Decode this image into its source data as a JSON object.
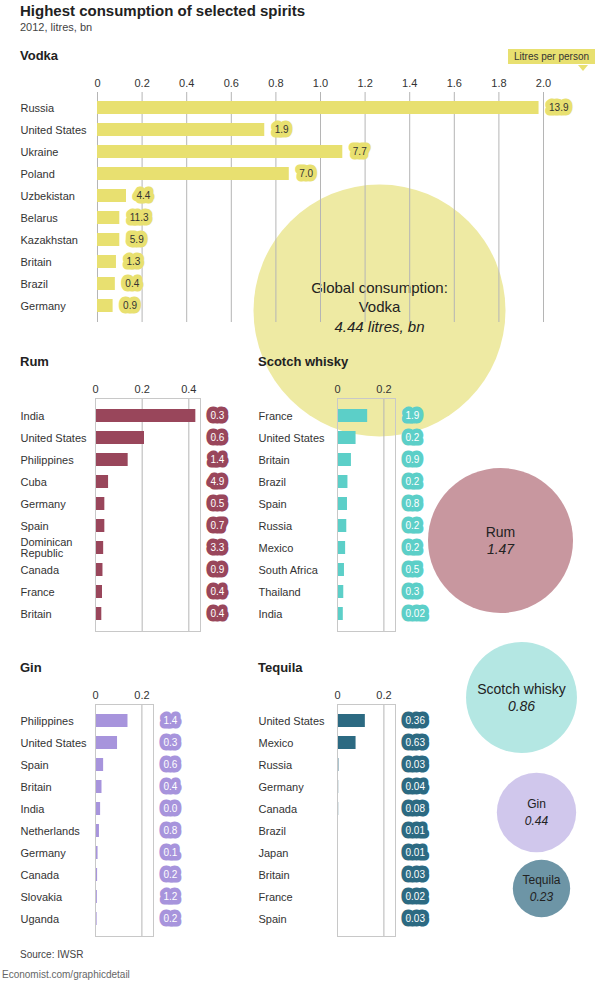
{
  "title": "Highest consumption of selected spirits",
  "subtitle": "2012, litres, bn",
  "source": "Source: IWSR",
  "credit": "Economist.com/graphicdetail",
  "chart_data": [
    {
      "type": "bar",
      "orientation": "horizontal",
      "title": "Vodka",
      "per_person_label": "Litres per person",
      "categories": [
        "Russia",
        "United States",
        "Ukraine",
        "Poland",
        "Uzbekistan",
        "Belarus",
        "Kazakhstan",
        "Britain",
        "Brazil",
        "Germany"
      ],
      "values": [
        1.98,
        0.75,
        1.1,
        0.86,
        0.13,
        0.1,
        0.1,
        0.085,
        0.08,
        0.07
      ],
      "per_person": [
        13.9,
        1.9,
        7.7,
        {
          "value": 7,
          "label": "7.0"
        },
        4.4,
        11.3,
        5.9,
        1.3,
        0.4,
        0.9
      ],
      "color": "#e8e070",
      "xlim": [
        0,
        2
      ],
      "xticks": [
        0,
        0.2,
        0.4,
        0.6,
        0.8,
        {
          "value": 1,
          "label": "1.0"
        },
        1.2,
        1.4,
        1.6,
        1.8,
        {
          "value": 2,
          "label": "2.0"
        }
      ],
      "grid": true
    },
    {
      "type": "bar",
      "orientation": "horizontal",
      "title": "Rum",
      "categories": [
        "India",
        "United States",
        "Philippines",
        "Cuba",
        "Germany",
        "Spain",
        "Dominican Republic",
        "Canada",
        "France",
        "Britain"
      ],
      "values": [
        0.43,
        0.21,
        0.14,
        0.056,
        0.04,
        0.04,
        0.035,
        0.032,
        0.03,
        0.027
      ],
      "per_person": [
        0.3,
        0.6,
        1.4,
        4.9,
        0.5,
        0.7,
        3.3,
        0.9,
        0.4,
        0.4
      ],
      "color": "#99465b",
      "xlim": [
        0,
        0.45
      ],
      "xticks": [
        0,
        0.2,
        0.4
      ],
      "grid": true
    },
    {
      "type": "bar",
      "orientation": "horizontal",
      "title": "Scotch whisky",
      "categories": [
        "France",
        "United States",
        "Britain",
        "Brazil",
        "Spain",
        "Russia",
        "Mexico",
        "South Africa",
        "Thailand",
        "India"
      ],
      "values": [
        0.13,
        0.08,
        0.06,
        0.045,
        0.043,
        0.04,
        0.035,
        0.03,
        0.027,
        0.025
      ],
      "per_person": [
        1.9,
        0.2,
        0.9,
        0.2,
        0.8,
        0.2,
        0.2,
        0.5,
        0.3,
        0.02
      ],
      "color": "#5ccfc8",
      "xlim": [
        0,
        0.25
      ],
      "xticks": [
        0,
        0.2
      ],
      "grid": true
    },
    {
      "type": "bar",
      "orientation": "horizontal",
      "title": "Gin",
      "categories": [
        "Philippines",
        "United States",
        "Spain",
        "Britain",
        "India",
        "Netherlands",
        "Germany",
        "Canada",
        "Slovakia",
        "Uganda"
      ],
      "values": [
        0.14,
        0.095,
        0.035,
        0.028,
        0.022,
        0.017,
        0.011,
        0.009,
        0.008,
        0.007
      ],
      "per_person": [
        1.4,
        0.3,
        0.6,
        0.4,
        {
          "value": 0,
          "label": "0.0"
        },
        0.8,
        0.1,
        0.2,
        1.2,
        0.2
      ],
      "color": "#a794dc",
      "xlim": [
        0,
        0.25
      ],
      "xticks": [
        0,
        0.2
      ],
      "grid": true
    },
    {
      "type": "bar",
      "orientation": "horizontal",
      "title": "Tequila",
      "categories": [
        "United States",
        "Mexico",
        "Russia",
        "Germany",
        "Canada",
        "Brazil",
        "Japan",
        "Britain",
        "France",
        "Spain"
      ],
      "values": [
        0.12,
        0.08,
        0.006,
        0.005,
        0.005,
        0.004,
        0.004,
        0.004,
        0.003,
        0.003
      ],
      "per_person": [
        0.36,
        0.63,
        0.03,
        0.04,
        0.08,
        0.01,
        0.01,
        0.03,
        0.02,
        0.03
      ],
      "color": "#2c6a82",
      "xlim": [
        0,
        0.25
      ],
      "xticks": [
        0,
        0.2
      ],
      "grid": true
    },
    {
      "type": "bubble",
      "title": "Global consumption:",
      "categories": [
        "Vodka",
        "Rum",
        "Scotch whisky",
        "Gin",
        "Tequila"
      ],
      "values": [
        4.44,
        1.47,
        0.86,
        0.44,
        0.23
      ],
      "value_labels": [
        "4.44 litres, bn",
        "1.47",
        "0.86",
        "0.44",
        "0.23"
      ],
      "colors": [
        "#eeeaa3",
        "#c8979f",
        "#b4e7e3",
        "#d0c7ec",
        "#6d95a6"
      ]
    }
  ]
}
